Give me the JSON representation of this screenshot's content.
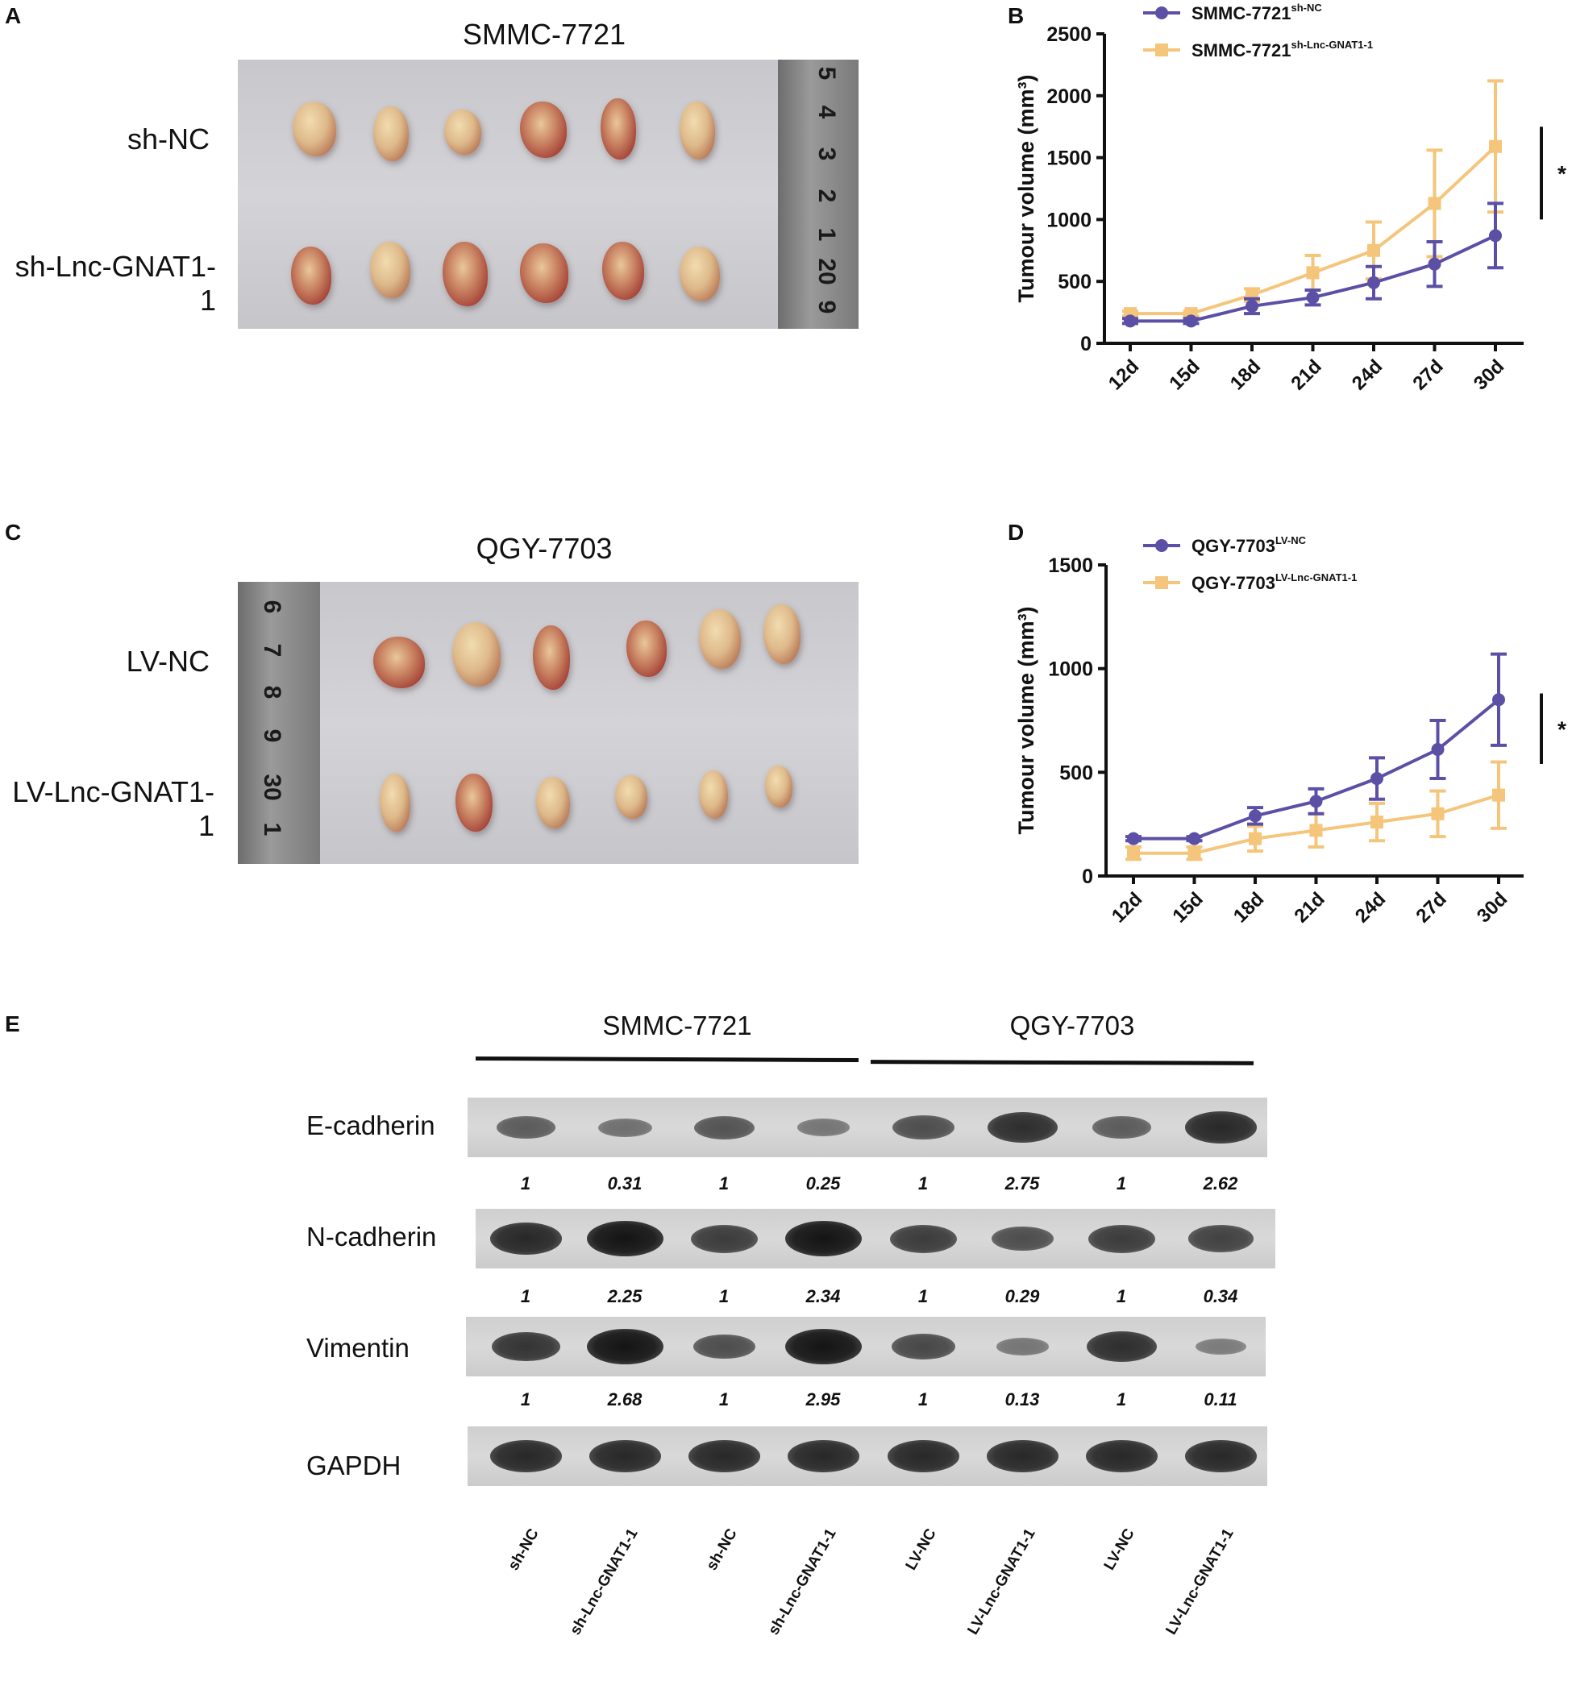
{
  "panels": {
    "a": {
      "letter": "A",
      "title": "SMMC-7721",
      "rows": [
        "sh-NC",
        "sh-Lnc-GNAT1-1"
      ],
      "ruler_numbers": [
        "5",
        "4",
        "3",
        "2",
        "1",
        "20",
        "9"
      ]
    },
    "b": {
      "letter": "B"
    },
    "c": {
      "letter": "C",
      "title": "QGY-7703",
      "rows": [
        "LV-NC",
        "LV-Lnc-GNAT1-1"
      ],
      "ruler_numbers": [
        "6",
        "7",
        "8",
        "9",
        "30",
        "1"
      ]
    },
    "d": {
      "letter": "D"
    },
    "e": {
      "letter": "E",
      "groups": [
        "SMMC-7721",
        "QGY-7703"
      ],
      "proteins": [
        "E-cadherin",
        "N-cadherin",
        "Vimentin",
        "GAPDH"
      ],
      "quant": [
        [
          "1",
          "0.31",
          "1",
          "0.25",
          "1",
          "2.75",
          "1",
          "2.62"
        ],
        [
          "1",
          "2.25",
          "1",
          "2.34",
          "1",
          "0.29",
          "1",
          "0.34"
        ],
        [
          "1",
          "2.68",
          "1",
          "2.95",
          "1",
          "0.13",
          "1",
          "0.11"
        ]
      ],
      "band_intensity": [
        [
          0.45,
          0.3,
          0.5,
          0.25,
          0.55,
          0.8,
          0.45,
          0.85
        ],
        [
          0.85,
          1.0,
          0.7,
          1.0,
          0.7,
          0.55,
          0.7,
          0.65
        ],
        [
          0.75,
          1.0,
          0.55,
          1.0,
          0.6,
          0.25,
          0.8,
          0.2
        ],
        [
          0.85,
          0.85,
          0.85,
          0.85,
          0.85,
          0.85,
          0.85,
          0.85
        ]
      ],
      "lanes": [
        "sh-NC",
        "sh-Lnc-GNAT1-1",
        "sh-NC",
        "sh-Lnc-GNAT1-1",
        "LV-NC",
        "LV-Lnc-GNAT1-1",
        "LV-NC",
        "LV-Lnc-GNAT1-1"
      ]
    }
  },
  "chart_data": [
    {
      "id": "B",
      "type": "line",
      "title": "",
      "xlabel": "",
      "ylabel": "Tumour volume (mm³)",
      "categories": [
        "12d",
        "15d",
        "18d",
        "21d",
        "24d",
        "27d",
        "30d"
      ],
      "ylim": [
        0,
        2500
      ],
      "yticks": [
        "0",
        "500",
        "1000",
        "1500",
        "2000",
        "2500"
      ],
      "series": [
        {
          "name": "SMMC-7721",
          "sup": "sh-NC",
          "color": "#5b4fa6",
          "marker": "circle",
          "values": [
            180,
            180,
            300,
            370,
            490,
            640,
            870
          ],
          "errors": [
            20,
            20,
            60,
            60,
            130,
            180,
            260
          ]
        },
        {
          "name": "SMMC-7721",
          "sup": "sh-Lnc-GNAT1-1",
          "color": "#f4c57a",
          "marker": "square",
          "values": [
            240,
            240,
            390,
            570,
            750,
            1130,
            1590
          ],
          "errors": [
            20,
            20,
            50,
            140,
            230,
            430,
            530
          ]
        }
      ],
      "significance": "*"
    },
    {
      "id": "D",
      "type": "line",
      "title": "",
      "xlabel": "",
      "ylabel": "Tumour volume (mm³)",
      "categories": [
        "12d",
        "15d",
        "18d",
        "21d",
        "24d",
        "27d",
        "30d"
      ],
      "ylim": [
        0,
        1500
      ],
      "yticks": [
        "0",
        "500",
        "1000",
        "1500"
      ],
      "series": [
        {
          "name": "QGY-7703",
          "sup": "LV-NC",
          "color": "#5b4fa6",
          "marker": "circle",
          "values": [
            180,
            180,
            290,
            360,
            470,
            610,
            850
          ],
          "errors": [
            10,
            10,
            40,
            60,
            100,
            140,
            220
          ]
        },
        {
          "name": "QGY-7703",
          "sup": "LV-Lnc-GNAT1-1",
          "color": "#f4c57a",
          "marker": "square",
          "values": [
            110,
            110,
            180,
            220,
            260,
            300,
            390
          ],
          "errors": [
            30,
            30,
            60,
            80,
            90,
            110,
            160
          ]
        }
      ],
      "significance": "*"
    }
  ]
}
